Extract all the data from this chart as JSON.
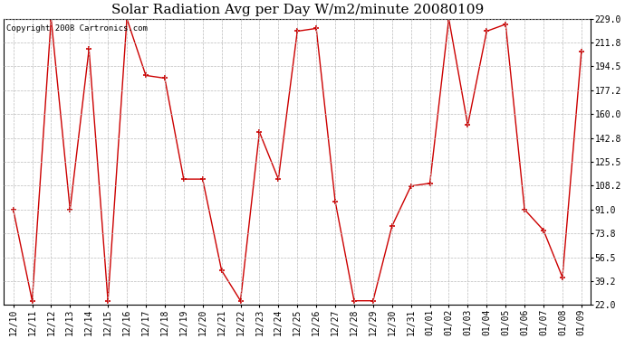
{
  "title": "Solar Radiation Avg per Day W/m2/minute 20080109",
  "copyright": "Copyright 2008 Cartronics.com",
  "dates": [
    "12/10",
    "12/11",
    "12/12",
    "12/13",
    "12/14",
    "12/15",
    "12/16",
    "12/17",
    "12/18",
    "12/19",
    "12/20",
    "12/21",
    "12/22",
    "12/23",
    "12/24",
    "12/25",
    "12/26",
    "12/27",
    "12/28",
    "12/29",
    "12/30",
    "12/31",
    "01/01",
    "01/02",
    "01/03",
    "01/04",
    "01/05",
    "01/06",
    "01/07",
    "01/08",
    "01/09"
  ],
  "values": [
    91.0,
    25.0,
    229.0,
    91.0,
    207.0,
    25.0,
    229.0,
    188.0,
    186.0,
    113.0,
    113.0,
    47.0,
    25.0,
    147.0,
    113.0,
    220.0,
    222.0,
    97.0,
    25.0,
    25.0,
    79.0,
    108.0,
    110.0,
    229.0,
    152.0,
    220.0,
    225.0,
    91.0,
    76.0,
    42.0,
    205.0
  ],
  "y_ticks": [
    22.0,
    39.2,
    56.5,
    73.8,
    91.0,
    108.2,
    125.5,
    142.8,
    160.0,
    177.2,
    194.5,
    211.8,
    229.0
  ],
  "ylim": [
    22.0,
    229.0
  ],
  "line_color": "#cc0000",
  "bg_color": "#ffffff",
  "grid_color": "#bbbbbb",
  "title_fontsize": 11,
  "copyright_fontsize": 6.5,
  "tick_fontsize": 7,
  "ytick_fontsize": 7
}
